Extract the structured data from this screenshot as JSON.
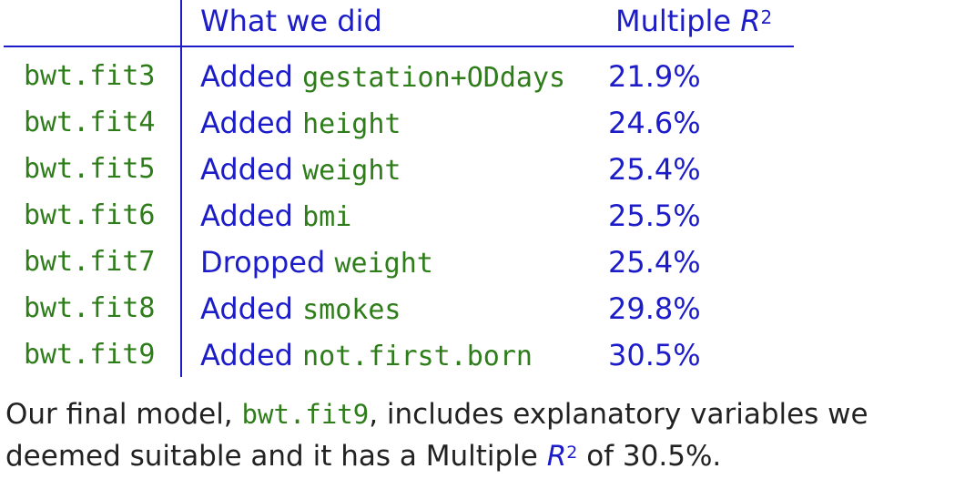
{
  "table": {
    "header": {
      "what": "What we did",
      "multiple": "Multiple",
      "r_symbol": "R",
      "r_exponent": "2"
    },
    "rows": [
      {
        "name": "bwt.fit3",
        "verb": "Added",
        "variable": "gestation+ODdays",
        "r2": "21.9%"
      },
      {
        "name": "bwt.fit4",
        "verb": "Added",
        "variable": "height",
        "r2": "24.6%"
      },
      {
        "name": "bwt.fit5",
        "verb": "Added",
        "variable": "weight",
        "r2": "25.4%"
      },
      {
        "name": "bwt.fit6",
        "verb": "Added",
        "variable": "bmi",
        "r2": "25.5%"
      },
      {
        "name": "bwt.fit7",
        "verb": "Dropped",
        "variable": "weight",
        "r2": "25.4%"
      },
      {
        "name": "bwt.fit8",
        "verb": "Added",
        "variable": "smokes",
        "r2": "29.8%"
      },
      {
        "name": "bwt.fit9",
        "verb": "Added",
        "variable": "not.first.born",
        "r2": "30.5%"
      }
    ]
  },
  "conclusion": {
    "part1": "Our final model, ",
    "model": "bwt.fit9",
    "part2": ", includes explanatory variables we deemed suitable and it has a Multiple ",
    "r_symbol": "R",
    "r_exponent": "2",
    "part3": " of 30.5%."
  },
  "colors": {
    "blue": "#1c1cc8",
    "code_green": "#2e7d1a",
    "text": "#222222"
  }
}
